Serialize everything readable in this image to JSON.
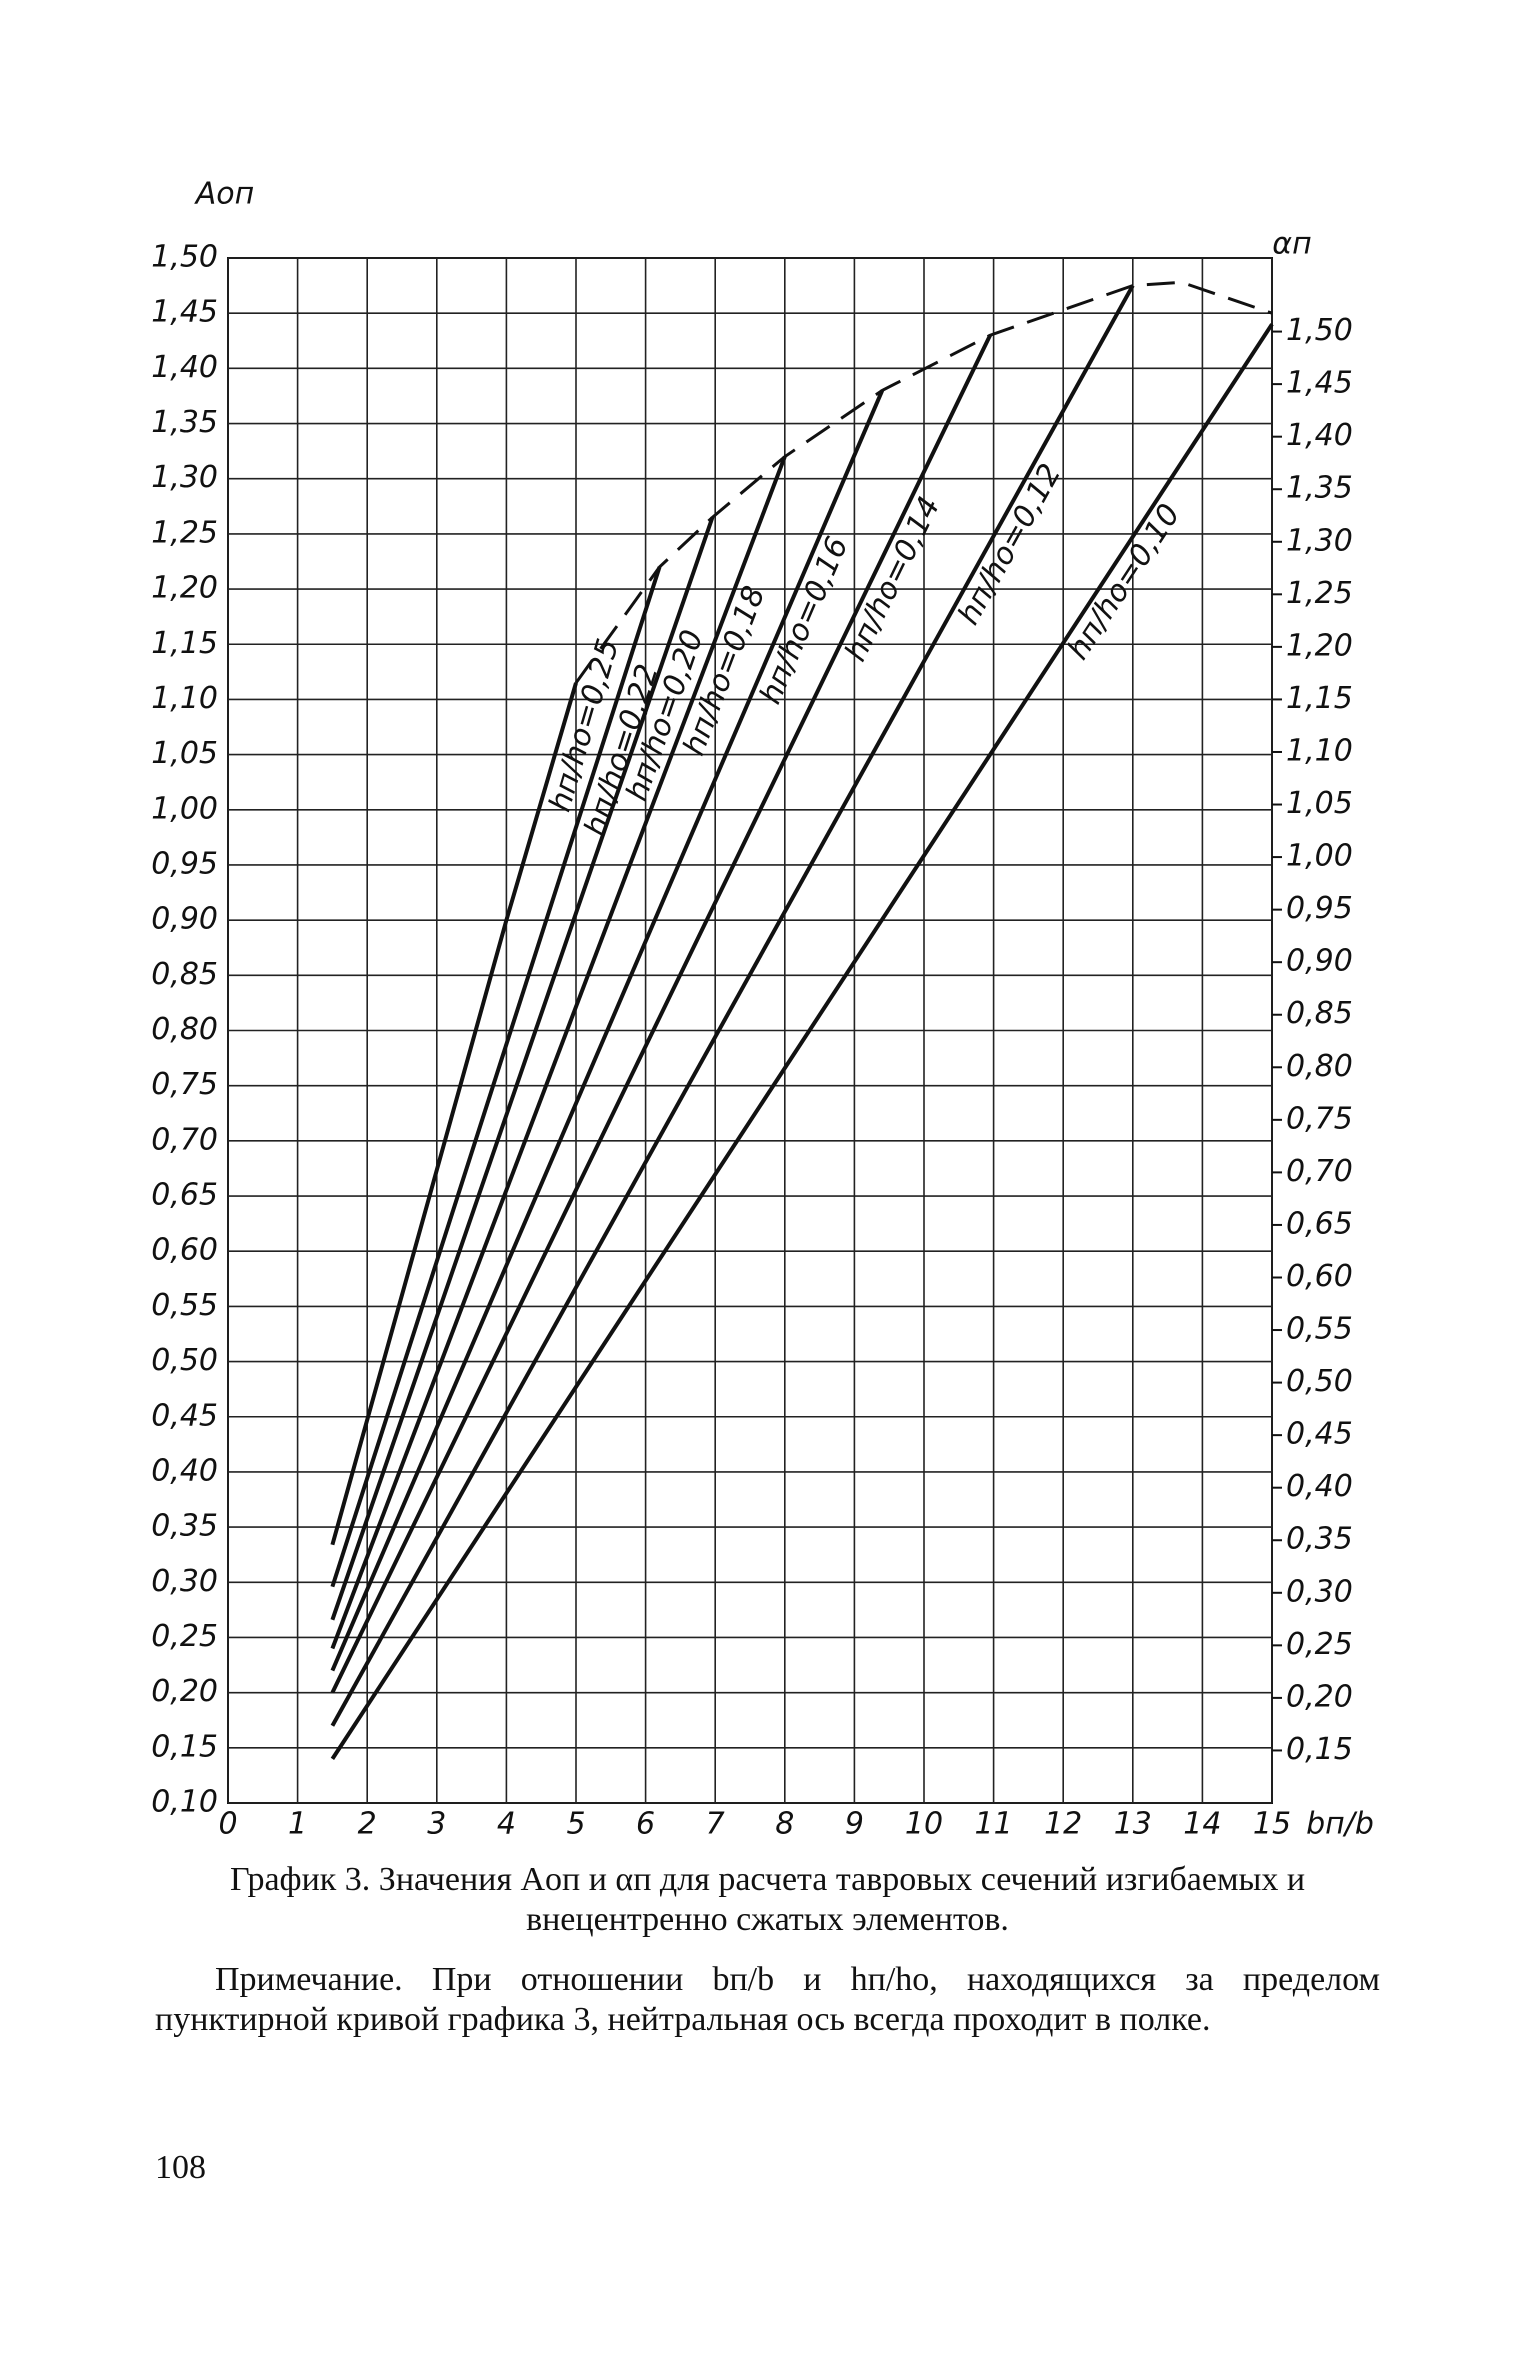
{
  "chart_data": {
    "type": "line",
    "y_label": "Aоп",
    "y2_label": "αп",
    "x_label": "bп/b",
    "xlim": [
      0,
      15
    ],
    "xticks": [
      0,
      1,
      2,
      3,
      4,
      5,
      6,
      7,
      8,
      9,
      10,
      11,
      12,
      13,
      14,
      15
    ],
    "ylim": [
      0.1,
      1.5
    ],
    "yticks": [
      {
        "value": 0.1,
        "label": "0,10"
      },
      {
        "value": 0.15,
        "label": "0,15"
      },
      {
        "value": 0.2,
        "label": "0,20"
      },
      {
        "value": 0.25,
        "label": "0,25"
      },
      {
        "value": 0.3,
        "label": "0,30"
      },
      {
        "value": 0.35,
        "label": "0,35"
      },
      {
        "value": 0.4,
        "label": "0,40"
      },
      {
        "value": 0.45,
        "label": "0,45"
      },
      {
        "value": 0.5,
        "label": "0,50"
      },
      {
        "value": 0.55,
        "label": "0,55"
      },
      {
        "value": 0.6,
        "label": "0,60"
      },
      {
        "value": 0.65,
        "label": "0,65"
      },
      {
        "value": 0.7,
        "label": "0,70"
      },
      {
        "value": 0.75,
        "label": "0,75"
      },
      {
        "value": 0.8,
        "label": "0,80"
      },
      {
        "value": 0.85,
        "label": "0,85"
      },
      {
        "value": 0.9,
        "label": "0,90"
      },
      {
        "value": 0.95,
        "label": "0,95"
      },
      {
        "value": 1.0,
        "label": "1,00"
      },
      {
        "value": 1.05,
        "label": "1,05"
      },
      {
        "value": 1.1,
        "label": "1,10"
      },
      {
        "value": 1.15,
        "label": "1,15"
      },
      {
        "value": 1.2,
        "label": "1,20"
      },
      {
        "value": 1.25,
        "label": "1,25"
      },
      {
        "value": 1.3,
        "label": "1,30"
      },
      {
        "value": 1.35,
        "label": "1,35"
      },
      {
        "value": 1.4,
        "label": "1,40"
      },
      {
        "value": 1.45,
        "label": "1,45"
      },
      {
        "value": 1.5,
        "label": "1,50"
      }
    ],
    "y2lim": [
      0.1,
      1.57
    ],
    "y2ticks": [
      {
        "value": 0.15,
        "label": "0,15"
      },
      {
        "value": 0.2,
        "label": "0,20"
      },
      {
        "value": 0.25,
        "label": "0,25"
      },
      {
        "value": 0.3,
        "label": "0,30"
      },
      {
        "value": 0.35,
        "label": "0,35"
      },
      {
        "value": 0.4,
        "label": "0,40"
      },
      {
        "value": 0.45,
        "label": "0,45"
      },
      {
        "value": 0.5,
        "label": "0,50"
      },
      {
        "value": 0.55,
        "label": "0,55"
      },
      {
        "value": 0.6,
        "label": "0,60"
      },
      {
        "value": 0.65,
        "label": "0,65"
      },
      {
        "value": 0.7,
        "label": "0,70"
      },
      {
        "value": 0.75,
        "label": "0,75"
      },
      {
        "value": 0.8,
        "label": "0,80"
      },
      {
        "value": 0.85,
        "label": "0,85"
      },
      {
        "value": 0.9,
        "label": "0,90"
      },
      {
        "value": 0.95,
        "label": "0,95"
      },
      {
        "value": 1.0,
        "label": "1,00"
      },
      {
        "value": 1.05,
        "label": "1,05"
      },
      {
        "value": 1.1,
        "label": "1,10"
      },
      {
        "value": 1.15,
        "label": "1,15"
      },
      {
        "value": 1.2,
        "label": "1,20"
      },
      {
        "value": 1.25,
        "label": "1,25"
      },
      {
        "value": 1.3,
        "label": "1,30"
      },
      {
        "value": 1.35,
        "label": "1,35"
      },
      {
        "value": 1.4,
        "label": "1,40"
      },
      {
        "value": 1.45,
        "label": "1,45"
      },
      {
        "value": 1.5,
        "label": "1,50"
      }
    ],
    "grid": true,
    "series": [
      {
        "name": "hп/hо=0,25",
        "color": "#111",
        "x": [
          1.5,
          4.0,
          5.0
        ],
        "values": [
          0.334,
          0.9,
          1.115
        ]
      },
      {
        "name": "hп/hо=0,22",
        "color": "#111",
        "x": [
          1.5,
          6.2
        ],
        "values": [
          0.296,
          1.22
        ]
      },
      {
        "name": "hп/hо=0,20",
        "color": "#111",
        "x": [
          1.5,
          6.96
        ],
        "values": [
          0.266,
          1.265
        ]
      },
      {
        "name": "hп/hо=0,18",
        "color": "#111",
        "x": [
          1.5,
          8.0
        ],
        "values": [
          0.24,
          1.32
        ]
      },
      {
        "name": "hп/hо=0,16",
        "color": "#111",
        "x": [
          1.5,
          9.4
        ],
        "values": [
          0.22,
          1.38
        ]
      },
      {
        "name": "hп/hо=0,14",
        "color": "#111",
        "x": [
          1.5,
          10.95
        ],
        "values": [
          0.2,
          1.43
        ]
      },
      {
        "name": "hп/hо=0,12",
        "color": "#111",
        "x": [
          1.5,
          13.0
        ],
        "values": [
          0.17,
          1.475
        ]
      },
      {
        "name": "hп/hо=0,10",
        "color": "#111",
        "x": [
          1.5,
          15.0
        ],
        "values": [
          0.14,
          1.44
        ]
      }
    ],
    "boundary": {
      "color": "#111",
      "x": [
        5.0,
        6.2,
        6.96,
        8.0,
        9.4,
        10.95,
        13.0,
        13.7,
        15.0
      ],
      "values": [
        1.115,
        1.22,
        1.265,
        1.32,
        1.38,
        1.43,
        1.475,
        1.478,
        1.45
      ]
    }
  },
  "caption": "График 3. Значения Aоп и αп для расчета тавровых сечений изгибаемых и внецентренно сжатых элементов.",
  "note": "Примечание. При отношении bп/b и hп/hо, находящихся за пределом пунктирной кривой графика 3, нейтральная ось всегда проходит в полке.",
  "page_number": "108"
}
